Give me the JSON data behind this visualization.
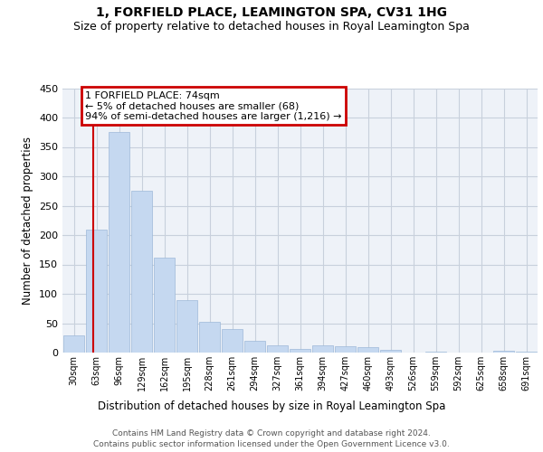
{
  "title": "1, FORFIELD PLACE, LEAMINGTON SPA, CV31 1HG",
  "subtitle": "Size of property relative to detached houses in Royal Leamington Spa",
  "xlabel": "Distribution of detached houses by size in Royal Leamington Spa",
  "ylabel": "Number of detached properties",
  "footnote1": "Contains HM Land Registry data © Crown copyright and database right 2024.",
  "footnote2": "Contains public sector information licensed under the Open Government Licence v3.0.",
  "bar_labels": [
    "30sqm",
    "63sqm",
    "96sqm",
    "129sqm",
    "162sqm",
    "195sqm",
    "228sqm",
    "261sqm",
    "294sqm",
    "327sqm",
    "361sqm",
    "394sqm",
    "427sqm",
    "460sqm",
    "493sqm",
    "526sqm",
    "559sqm",
    "592sqm",
    "625sqm",
    "658sqm",
    "691sqm"
  ],
  "bar_values": [
    30,
    210,
    375,
    275,
    162,
    90,
    53,
    40,
    20,
    12,
    6,
    12,
    11,
    9,
    4,
    0,
    1,
    0,
    0,
    3,
    2
  ],
  "bar_color": "#c5d8f0",
  "bar_edge_color": "#9db8d8",
  "grid_color": "#c8d0dc",
  "bg_color": "#eef2f8",
  "annotation_text": "1 FORFIELD PLACE: 74sqm\n← 5% of detached houses are smaller (68)\n94% of semi-detached houses are larger (1,216) →",
  "annotation_box_color": "#cc0000",
  "vline_color": "#cc0000",
  "ylim": [
    0,
    450
  ],
  "yticks": [
    0,
    50,
    100,
    150,
    200,
    250,
    300,
    350,
    400,
    450
  ],
  "title_fontsize": 10,
  "subtitle_fontsize": 9
}
